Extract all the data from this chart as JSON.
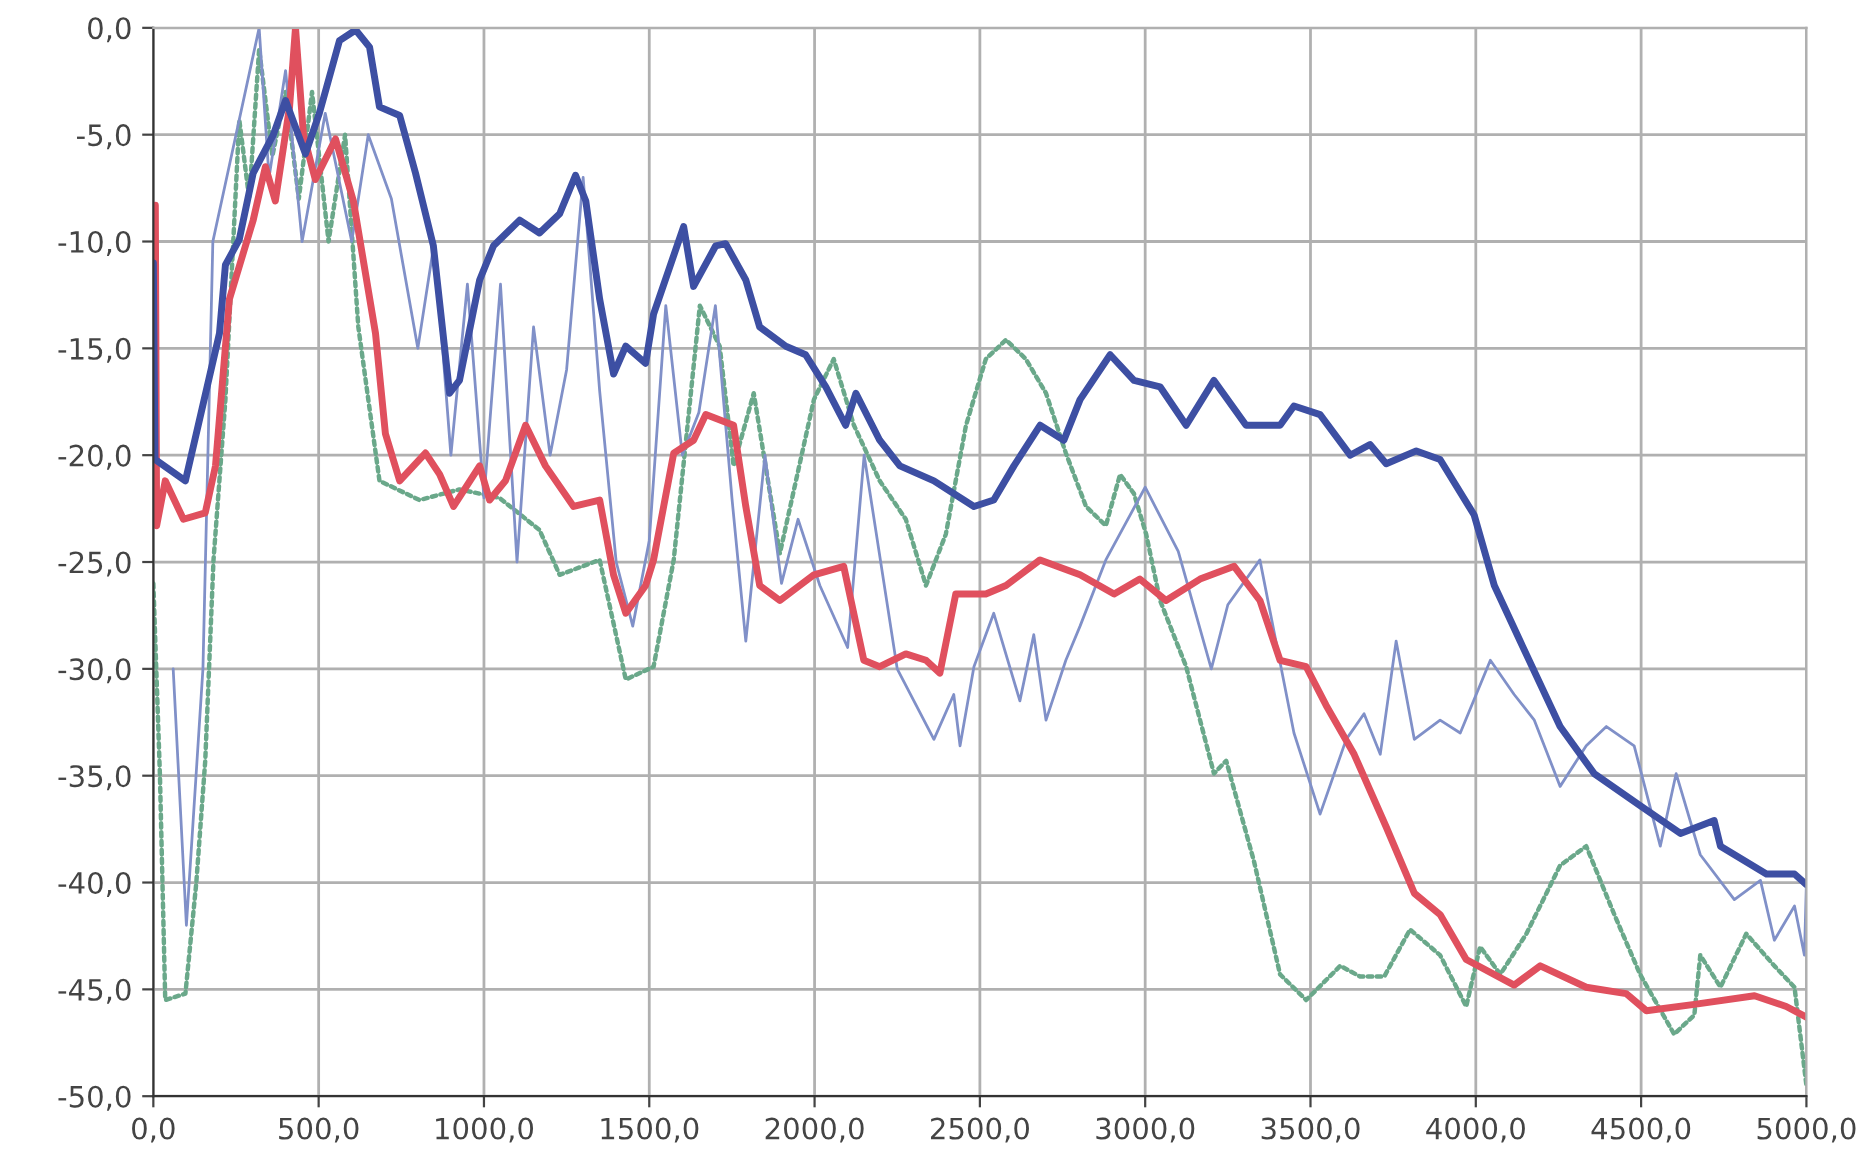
{
  "chart_data": {
    "type": "line",
    "xlim": [
      0,
      5000
    ],
    "ylim": [
      -50,
      0
    ],
    "grid": true,
    "legend": false,
    "marker": "none",
    "xticks": [
      {
        "value": 0,
        "label": "0,0"
      },
      {
        "value": 500,
        "label": "500,0"
      },
      {
        "value": 1000,
        "label": "1000,0"
      },
      {
        "value": 1500,
        "label": "1500,0"
      },
      {
        "value": 2000,
        "label": "2000,0"
      },
      {
        "value": 2500,
        "label": "2500,0"
      },
      {
        "value": 3000,
        "label": "3000,0"
      },
      {
        "value": 3500,
        "label": "3500,0"
      },
      {
        "value": 4000,
        "label": "4000,0"
      },
      {
        "value": 4500,
        "label": "4500,0"
      },
      {
        "value": 5000,
        "label": "5000,0"
      }
    ],
    "yticks": [
      {
        "value": -50,
        "label": "-50,0"
      },
      {
        "value": -45,
        "label": "-45,0"
      },
      {
        "value": -40,
        "label": "-40,0"
      },
      {
        "value": -35,
        "label": "-35,0"
      },
      {
        "value": -30,
        "label": "-30,0"
      },
      {
        "value": -25,
        "label": "-25,0"
      },
      {
        "value": -20,
        "label": "-20,0"
      },
      {
        "value": -15,
        "label": "-15,0"
      },
      {
        "value": -10,
        "label": "-10,0"
      },
      {
        "value": -5,
        "label": "-5,0"
      },
      {
        "value": 0,
        "label": "0,0"
      }
    ],
    "series": [
      {
        "color": "#6aa88a",
        "line_style": "dotted",
        "x": [
          0,
          20,
          36,
          97,
          130,
          157,
          182,
          218,
          260,
          290,
          320,
          360,
          400,
          440,
          480,
          530,
          580,
          620,
          684,
          805,
          926,
          1047,
          1168,
          1229,
          1350,
          1429,
          1513,
          1574,
          1653,
          1713,
          1755,
          1816,
          1895,
          1998,
          2058,
          2119,
          2197,
          2276,
          2337,
          2397,
          2458,
          2518,
          2579,
          2639,
          2700,
          2760,
          2821,
          2881,
          2924,
          2966,
          3003,
          3045,
          3124,
          3208,
          3245,
          3329,
          3408,
          3487,
          3590,
          3650,
          3723,
          3801,
          3892,
          3971,
          4013,
          4074,
          4153,
          4255,
          4334,
          4419,
          4497,
          4600,
          4661,
          4679,
          4740,
          4818,
          4903,
          4964,
          5000
        ],
        "values": [
          -26,
          -35,
          -45.5,
          -45.2,
          -40,
          -34.3,
          -24.9,
          -17.4,
          -4.3,
          -8,
          -1,
          -6,
          -3,
          -8,
          -3,
          -10,
          -5,
          -14,
          -21.2,
          -22.1,
          -21.6,
          -22,
          -23.5,
          -25.6,
          -24.9,
          -30.5,
          -29.9,
          -24.9,
          -13,
          -14.9,
          -20.5,
          -17.1,
          -24.6,
          -17.4,
          -15.5,
          -18.6,
          -21.2,
          -23,
          -26.1,
          -23.7,
          -18.6,
          -15.5,
          -14.6,
          -15.5,
          -17.1,
          -19.9,
          -22.4,
          -23.3,
          -20.9,
          -21.8,
          -23.7,
          -26.8,
          -29.9,
          -34.9,
          -34.3,
          -39,
          -44.3,
          -45.5,
          -43.9,
          -44.4,
          -44.4,
          -42.2,
          -43.4,
          -45.8,
          -43,
          -44.3,
          -42.4,
          -39.2,
          -38.3,
          -41.5,
          -44.3,
          -47.1,
          -46.2,
          -43.4,
          -44.9,
          -42.4,
          -43.9,
          -44.9,
          -49.5
        ]
      },
      {
        "color": "#8090c8",
        "line_style": "solid",
        "x": [
          60,
          100,
          150,
          180,
          250,
          320,
          350,
          400,
          450,
          520,
          600,
          650,
          720,
          800,
          850,
          900,
          950,
          1000,
          1050,
          1100,
          1150,
          1200,
          1250,
          1300,
          1350,
          1400,
          1450,
          1500,
          1550,
          1600,
          1650,
          1700,
          1750,
          1792,
          1850,
          1900,
          1950,
          2016,
          2100,
          2150,
          2250,
          2361,
          2421,
          2440,
          2482,
          2542,
          2621,
          2663,
          2700,
          2760,
          2803,
          2881,
          3000,
          3100,
          3200,
          3250,
          3347,
          3450,
          3529,
          3608,
          3662,
          3711,
          3759,
          3814,
          3892,
          3953,
          4044,
          4116,
          4177,
          4255,
          4334,
          4395,
          4479,
          4558,
          4606,
          4679,
          4782,
          4861,
          4903,
          4964,
          4994,
          5000
        ],
        "values": [
          -30,
          -42,
          -30,
          -10,
          -5,
          0,
          -7,
          -2,
          -10,
          -4,
          -10,
          -5,
          -8,
          -15,
          -10,
          -20,
          -12,
          -22,
          -12,
          -25,
          -14,
          -20,
          -16,
          -7,
          -17,
          -25,
          -28,
          -24,
          -13,
          -20,
          -18,
          -13,
          -22,
          -28.7,
          -20,
          -26,
          -23,
          -26.1,
          -29,
          -20,
          -30,
          -33.3,
          -31.2,
          -33.6,
          -29.9,
          -27.4,
          -31.5,
          -28.4,
          -32.4,
          -29.6,
          -28,
          -24.9,
          -21.5,
          -24.5,
          -30,
          -27,
          -24.9,
          -33,
          -36.8,
          -33.3,
          -32.1,
          -34,
          -28.7,
          -33.3,
          -32.4,
          -33,
          -29.6,
          -31.2,
          -32.4,
          -35.5,
          -33.6,
          -32.7,
          -33.6,
          -38.3,
          -34.9,
          -38.7,
          -40.8,
          -39.9,
          -42.7,
          -41.1,
          -43.4,
          -40
        ]
      },
      {
        "color": "#e0505e",
        "line_style": "solid",
        "x": [
          0,
          6,
          10,
          36,
          91,
          157,
          188,
          230,
          302,
          339,
          369,
          412,
          430,
          454,
          490,
          551,
          605,
          672,
          702,
          745,
          823,
          866,
          908,
          987,
          1017,
          1065,
          1126,
          1186,
          1271,
          1350,
          1392,
          1429,
          1489,
          1513,
          1574,
          1634,
          1671,
          1755,
          1792,
          1834,
          1895,
          1998,
          2088,
          2149,
          2197,
          2276,
          2337,
          2379,
          2427,
          2518,
          2579,
          2682,
          2803,
          2906,
          2984,
          3063,
          3166,
          3269,
          3347,
          3408,
          3487,
          3547,
          3632,
          3729,
          3814,
          3892,
          3971,
          4116,
          4195,
          4334,
          4455,
          4516,
          4661,
          4843,
          4939,
          5000
        ],
        "values": [
          -23,
          -8.3,
          -23.3,
          -21.2,
          -23,
          -22.7,
          -20.5,
          -12.7,
          -9,
          -6.5,
          -8.1,
          -3.7,
          0,
          -5,
          -7.1,
          -5.2,
          -8.1,
          -14.3,
          -19,
          -21.2,
          -19.9,
          -20.9,
          -22.4,
          -20.5,
          -22.1,
          -21.2,
          -18.6,
          -20.5,
          -22.4,
          -22.1,
          -25.6,
          -27.4,
          -26.1,
          -24.9,
          -19.9,
          -19.3,
          -18.1,
          -18.6,
          -22.4,
          -26.1,
          -26.8,
          -25.6,
          -25.2,
          -29.6,
          -29.9,
          -29.3,
          -29.6,
          -30.2,
          -26.5,
          -26.5,
          -26.1,
          -24.9,
          -25.6,
          -26.5,
          -25.8,
          -26.8,
          -25.8,
          -25.2,
          -26.8,
          -29.6,
          -29.9,
          -31.7,
          -34,
          -37.4,
          -40.5,
          -41.5,
          -43.6,
          -44.8,
          -43.9,
          -44.9,
          -45.2,
          -46,
          -45.7,
          -45.3,
          -45.8,
          -46.3
        ]
      },
      {
        "color": "#3d4fa3",
        "line_style": "solid",
        "x": [
          0,
          5,
          97,
          200,
          218,
          260,
          302,
          363,
          400,
          460,
          502,
          563,
          612,
          654,
          684,
          745,
          793,
          847,
          896,
          926,
          987,
          1029,
          1108,
          1168,
          1229,
          1277,
          1308,
          1350,
          1392,
          1429,
          1489,
          1513,
          1604,
          1634,
          1701,
          1731,
          1792,
          1834,
          1913,
          1973,
          2034,
          2094,
          2125,
          2197,
          2258,
          2361,
          2482,
          2542,
          2603,
          2682,
          2754,
          2803,
          2894,
          2966,
          3045,
          3124,
          3208,
          3305,
          3408,
          3450,
          3529,
          3620,
          3680,
          3729,
          3820,
          3892,
          3995,
          4056,
          4134,
          4255,
          4358,
          4497,
          4619,
          4721,
          4740,
          4879,
          4964,
          5000
        ],
        "values": [
          -11,
          -20.2,
          -21.2,
          -14.3,
          -11.1,
          -9.9,
          -6.8,
          -5,
          -3.4,
          -5.9,
          -4,
          -0.6,
          -0.1,
          -0.9,
          -3.7,
          -4.1,
          -6.8,
          -10.2,
          -17.1,
          -16.5,
          -11.8,
          -10.2,
          -9,
          -9.6,
          -8.7,
          -6.9,
          -8.1,
          -12.7,
          -16.2,
          -14.9,
          -15.7,
          -13.4,
          -9.3,
          -12.1,
          -10.2,
          -10.1,
          -11.8,
          -14,
          -14.9,
          -15.3,
          -16.8,
          -18.6,
          -17.1,
          -19.3,
          -20.5,
          -21.2,
          -22.4,
          -22.1,
          -20.5,
          -18.6,
          -19.3,
          -17.4,
          -15.3,
          -16.5,
          -16.8,
          -18.6,
          -16.5,
          -18.6,
          -18.6,
          -17.7,
          -18.1,
          -20,
          -19.5,
          -20.4,
          -19.8,
          -20.2,
          -22.8,
          -26.1,
          -28.7,
          -32.7,
          -34.9,
          -36.4,
          -37.7,
          -37.1,
          -38.3,
          -39.6,
          -39.6,
          -40.1
        ]
      }
    ]
  }
}
